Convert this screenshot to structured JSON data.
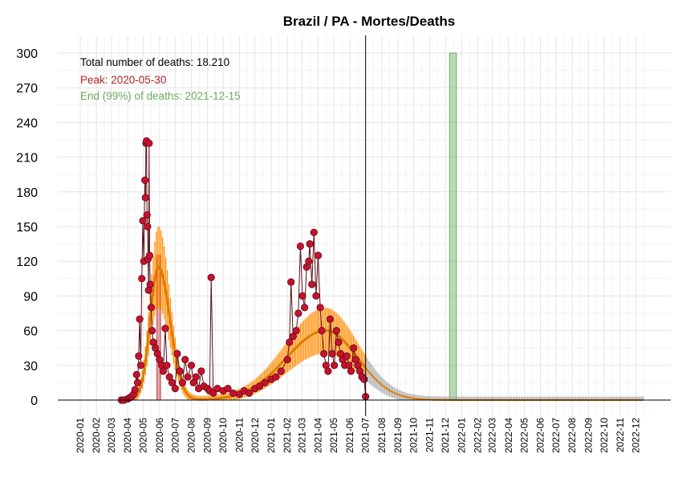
{
  "chart_data": {
    "type": "scatter",
    "title": "Brazil / PA - Mortes/Deaths",
    "xlabel": "",
    "ylabel": "",
    "ylim": [
      0,
      300
    ],
    "yticks": [
      0,
      30,
      60,
      90,
      120,
      150,
      180,
      210,
      240,
      270,
      300
    ],
    "xlim": [
      "2020-01-01",
      "2022-12-31"
    ],
    "xticks": [
      "2020-01",
      "2020-02",
      "2020-03",
      "2020-04",
      "2020-05",
      "2020-06",
      "2020-07",
      "2020-08",
      "2020-09",
      "2020-10",
      "2020-11",
      "2020-12",
      "2021-01",
      "2021-02",
      "2021-03",
      "2021-04",
      "2021-05",
      "2021-06",
      "2021-07",
      "2021-08",
      "2021-09",
      "2021-10",
      "2021-11",
      "2021-12",
      "2022-01",
      "2022-02",
      "2022-03",
      "2022-04",
      "2022-05",
      "2022-06",
      "2022-07",
      "2022-08",
      "2022-09",
      "2022-10",
      "2022-11",
      "2022-12"
    ],
    "grid": true,
    "annotations": {
      "total": "Total number of deaths: 18.210",
      "peak": "Peak: 2020-05-30",
      "end": "End (99%) of deaths: 2021-12-15"
    },
    "current_date": "2021-07-01",
    "end_band": [
      "2021-12-09",
      "2021-12-22"
    ],
    "peak_band": [
      "2020-05-27",
      "2020-06-03"
    ],
    "series": [
      {
        "kind": "observed_daily_deaths",
        "points": [
          [
            "2020-03-20",
            0
          ],
          [
            "2020-03-25",
            0
          ],
          [
            "2020-04-01",
            1
          ],
          [
            "2020-04-05",
            2
          ],
          [
            "2020-04-08",
            3
          ],
          [
            "2020-04-12",
            5
          ],
          [
            "2020-04-15",
            9
          ],
          [
            "2020-04-18",
            22
          ],
          [
            "2020-04-20",
            15
          ],
          [
            "2020-04-22",
            38
          ],
          [
            "2020-04-24",
            70
          ],
          [
            "2020-04-26",
            30
          ],
          [
            "2020-04-28",
            105
          ],
          [
            "2020-04-30",
            155
          ],
          [
            "2020-05-02",
            120
          ],
          [
            "2020-05-04",
            190
          ],
          [
            "2020-05-05",
            175
          ],
          [
            "2020-05-06",
            222
          ],
          [
            "2020-05-07",
            224
          ],
          [
            "2020-05-08",
            160
          ],
          [
            "2020-05-09",
            150
          ],
          [
            "2020-05-10",
            122
          ],
          [
            "2020-05-11",
            95
          ],
          [
            "2020-05-12",
            222
          ],
          [
            "2020-05-13",
            125
          ],
          [
            "2020-05-14",
            100
          ],
          [
            "2020-05-16",
            80
          ],
          [
            "2020-05-18",
            60
          ],
          [
            "2020-05-20",
            50
          ],
          [
            "2020-05-24",
            45
          ],
          [
            "2020-05-28",
            40
          ],
          [
            "2020-06-01",
            35
          ],
          [
            "2020-06-05",
            30
          ],
          [
            "2020-06-08",
            25
          ],
          [
            "2020-06-12",
            62
          ],
          [
            "2020-06-15",
            30
          ],
          [
            "2020-06-20",
            20
          ],
          [
            "2020-06-25",
            15
          ],
          [
            "2020-07-01",
            10
          ],
          [
            "2020-07-05",
            40
          ],
          [
            "2020-07-10",
            25
          ],
          [
            "2020-07-15",
            15
          ],
          [
            "2020-07-20",
            35
          ],
          [
            "2020-07-25",
            20
          ],
          [
            "2020-08-01",
            30
          ],
          [
            "2020-08-05",
            15
          ],
          [
            "2020-08-10",
            20
          ],
          [
            "2020-08-15",
            10
          ],
          [
            "2020-08-20",
            25
          ],
          [
            "2020-08-25",
            12
          ],
          [
            "2020-09-01",
            10
          ],
          [
            "2020-09-05",
            8
          ],
          [
            "2020-09-08",
            106
          ],
          [
            "2020-09-12",
            6
          ],
          [
            "2020-09-20",
            10
          ],
          [
            "2020-10-01",
            8
          ],
          [
            "2020-10-10",
            10
          ],
          [
            "2020-10-20",
            6
          ],
          [
            "2020-11-01",
            5
          ],
          [
            "2020-11-10",
            8
          ],
          [
            "2020-11-20",
            6
          ],
          [
            "2020-12-01",
            10
          ],
          [
            "2020-12-10",
            12
          ],
          [
            "2020-12-20",
            15
          ],
          [
            "2021-01-01",
            18
          ],
          [
            "2021-01-10",
            20
          ],
          [
            "2021-01-20",
            25
          ],
          [
            "2021-02-01",
            35
          ],
          [
            "2021-02-05",
            50
          ],
          [
            "2021-02-08",
            102
          ],
          [
            "2021-02-12",
            55
          ],
          [
            "2021-02-18",
            60
          ],
          [
            "2021-02-22",
            75
          ],
          [
            "2021-02-26",
            133
          ],
          [
            "2021-03-02",
            90
          ],
          [
            "2021-03-06",
            80
          ],
          [
            "2021-03-10",
            115
          ],
          [
            "2021-03-14",
            120
          ],
          [
            "2021-03-16",
            135
          ],
          [
            "2021-03-20",
            100
          ],
          [
            "2021-03-24",
            145
          ],
          [
            "2021-03-28",
            90
          ],
          [
            "2021-04-01",
            125
          ],
          [
            "2021-04-05",
            80
          ],
          [
            "2021-04-08",
            60
          ],
          [
            "2021-04-12",
            40
          ],
          [
            "2021-04-16",
            30
          ],
          [
            "2021-04-20",
            25
          ],
          [
            "2021-04-24",
            70
          ],
          [
            "2021-04-28",
            40
          ],
          [
            "2021-05-02",
            30
          ],
          [
            "2021-05-06",
            60
          ],
          [
            "2021-05-10",
            50
          ],
          [
            "2021-05-14",
            40
          ],
          [
            "2021-05-18",
            35
          ],
          [
            "2021-05-22",
            30
          ],
          [
            "2021-05-26",
            38
          ],
          [
            "2021-05-30",
            30
          ],
          [
            "2021-06-03",
            25
          ],
          [
            "2021-06-08",
            45
          ],
          [
            "2021-06-12",
            35
          ],
          [
            "2021-06-16",
            30
          ],
          [
            "2021-06-20",
            25
          ],
          [
            "2021-06-24",
            20
          ],
          [
            "2021-06-28",
            18
          ],
          [
            "2021-07-01",
            3
          ]
        ]
      },
      {
        "kind": "fitted_curve",
        "wave1_peak": [
          "2020-05-30",
          115
        ],
        "wave2_peak": [
          "2021-04-15",
          60
        ]
      }
    ]
  }
}
